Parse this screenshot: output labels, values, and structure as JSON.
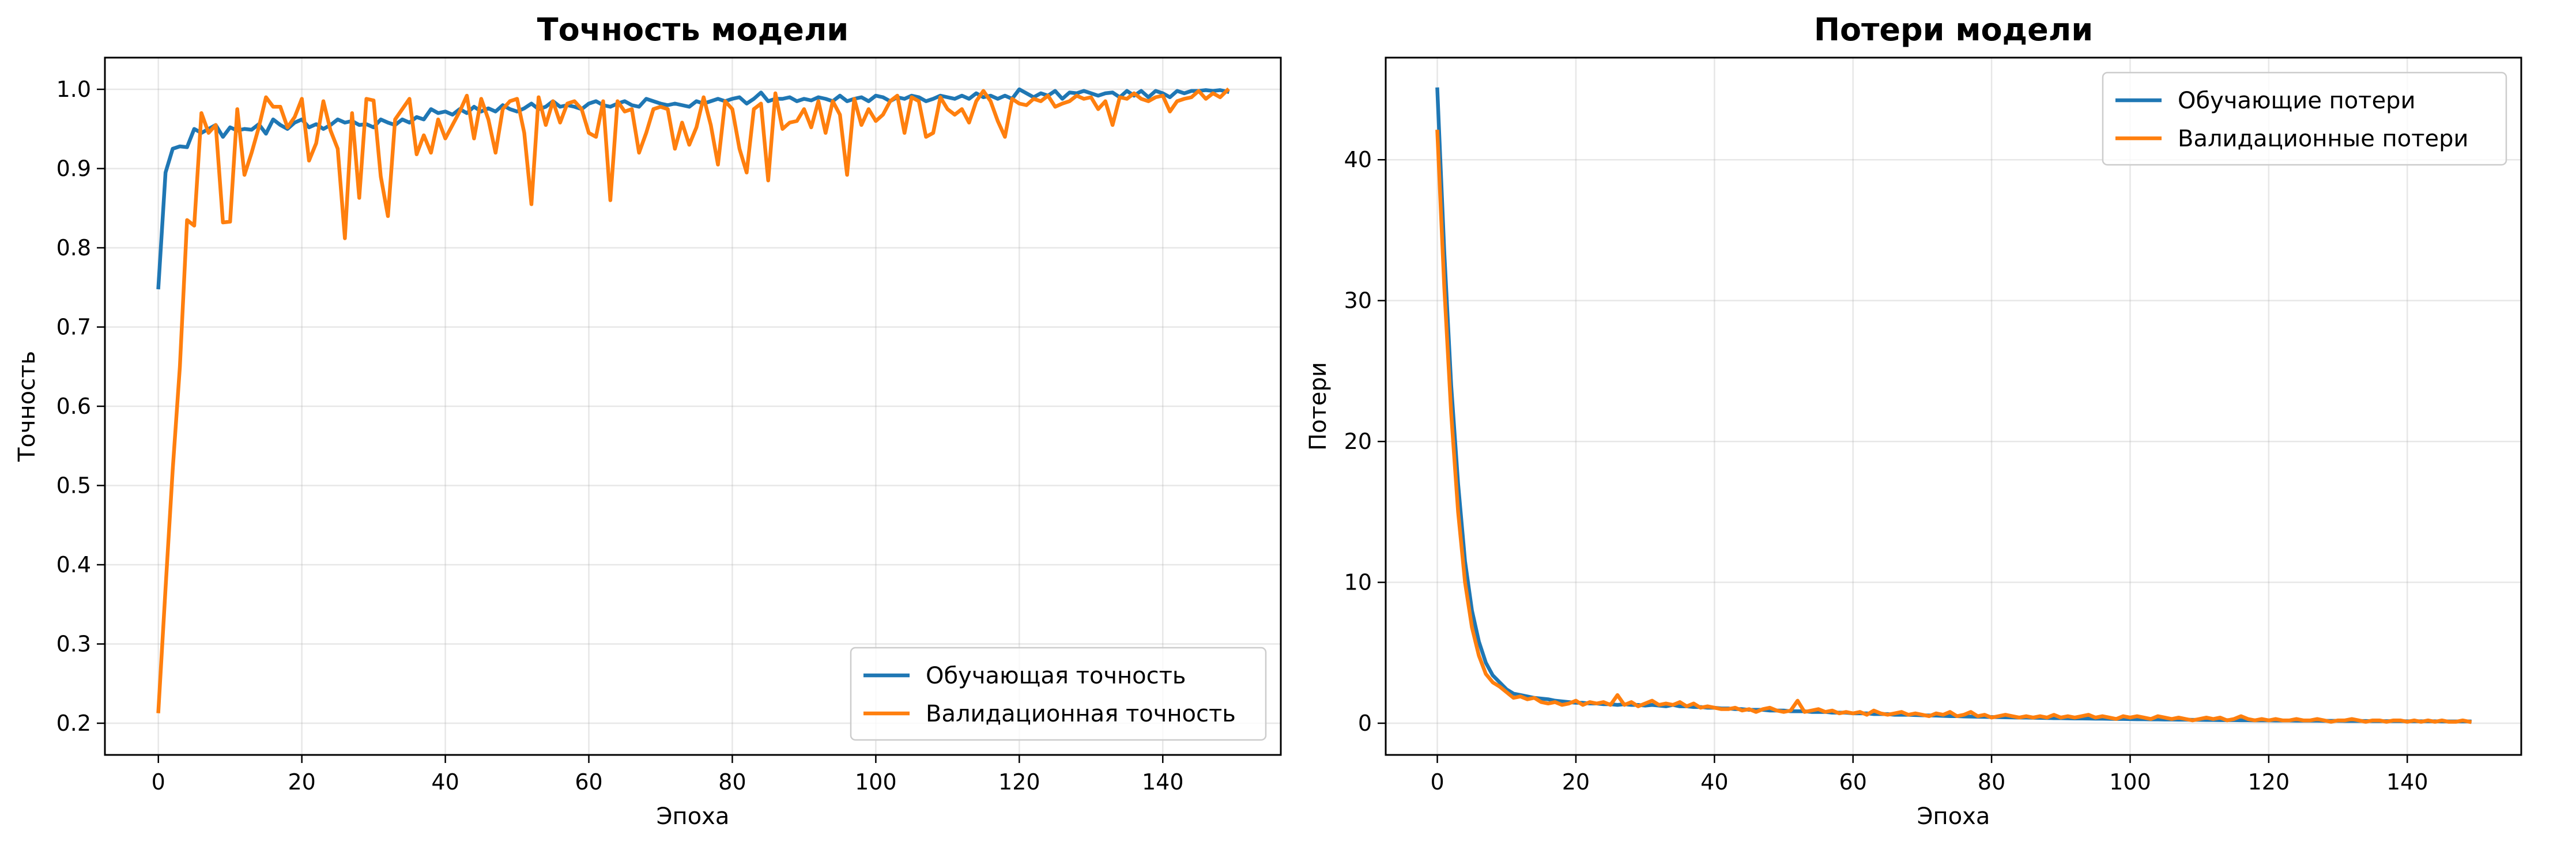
{
  "chart_data": [
    {
      "type": "line",
      "title": "Точность модели",
      "xlabel": "Эпоха",
      "ylabel": "Точность",
      "xlim": [
        -7.45,
        156.45
      ],
      "ylim": [
        0.16,
        1.04
      ],
      "xticks": [
        0,
        20,
        40,
        60,
        80,
        100,
        120,
        140
      ],
      "yticks": [
        0.2,
        0.3,
        0.4,
        0.5,
        0.6,
        0.7,
        0.8,
        0.9,
        1.0
      ],
      "ytick_labels": [
        "0.2",
        "0.3",
        "0.4",
        "0.5",
        "0.6",
        "0.7",
        "0.8",
        "0.9",
        "1.0"
      ],
      "grid": true,
      "legend_position": "lower-right",
      "x": [
        0,
        1,
        2,
        3,
        4,
        5,
        6,
        7,
        8,
        9,
        10,
        11,
        12,
        13,
        14,
        15,
        16,
        17,
        18,
        19,
        20,
        21,
        22,
        23,
        24,
        25,
        26,
        27,
        28,
        29,
        30,
        31,
        32,
        33,
        34,
        35,
        36,
        37,
        38,
        39,
        40,
        41,
        42,
        43,
        44,
        45,
        46,
        47,
        48,
        49,
        50,
        51,
        52,
        53,
        54,
        55,
        56,
        57,
        58,
        59,
        60,
        61,
        62,
        63,
        64,
        65,
        66,
        67,
        68,
        69,
        70,
        71,
        72,
        73,
        74,
        75,
        76,
        77,
        78,
        79,
        80,
        81,
        82,
        83,
        84,
        85,
        86,
        87,
        88,
        89,
        90,
        91,
        92,
        93,
        94,
        95,
        96,
        97,
        98,
        99,
        100,
        101,
        102,
        103,
        104,
        105,
        106,
        107,
        108,
        109,
        110,
        111,
        112,
        113,
        114,
        115,
        116,
        117,
        118,
        119,
        120,
        121,
        122,
        123,
        124,
        125,
        126,
        127,
        128,
        129,
        130,
        131,
        132,
        133,
        134,
        135,
        136,
        137,
        138,
        139,
        140,
        141,
        142,
        143,
        144,
        145,
        146,
        147,
        148,
        149
      ],
      "series": [
        {
          "name": "Обучающая точность",
          "color": "#1f77b4",
          "values": [
            0.75,
            0.895,
            0.925,
            0.928,
            0.927,
            0.95,
            0.945,
            0.95,
            0.955,
            0.94,
            0.952,
            0.948,
            0.95,
            0.949,
            0.956,
            0.944,
            0.962,
            0.955,
            0.95,
            0.958,
            0.962,
            0.952,
            0.956,
            0.95,
            0.955,
            0.962,
            0.958,
            0.96,
            0.955,
            0.956,
            0.952,
            0.962,
            0.958,
            0.955,
            0.962,
            0.958,
            0.965,
            0.962,
            0.975,
            0.97,
            0.972,
            0.968,
            0.975,
            0.97,
            0.978,
            0.972,
            0.976,
            0.972,
            0.98,
            0.975,
            0.972,
            0.976,
            0.982,
            0.975,
            0.978,
            0.985,
            0.978,
            0.98,
            0.978,
            0.975,
            0.982,
            0.985,
            0.98,
            0.978,
            0.982,
            0.985,
            0.98,
            0.978,
            0.988,
            0.985,
            0.982,
            0.98,
            0.982,
            0.98,
            0.978,
            0.985,
            0.982,
            0.985,
            0.988,
            0.985,
            0.988,
            0.99,
            0.982,
            0.988,
            0.996,
            0.985,
            0.988,
            0.988,
            0.99,
            0.985,
            0.988,
            0.986,
            0.99,
            0.988,
            0.985,
            0.992,
            0.985,
            0.988,
            0.99,
            0.985,
            0.992,
            0.99,
            0.985,
            0.99,
            0.988,
            0.992,
            0.99,
            0.985,
            0.988,
            0.992,
            0.99,
            0.988,
            0.992,
            0.988,
            0.995,
            0.99,
            0.992,
            0.988,
            0.992,
            0.988,
            1.0,
            0.995,
            0.99,
            0.995,
            0.992,
            0.998,
            0.988,
            0.996,
            0.995,
            0.998,
            0.995,
            0.992,
            0.995,
            0.996,
            0.99,
            0.998,
            0.992,
            0.998,
            0.99,
            0.998,
            0.995,
            0.99,
            0.998,
            0.995,
            0.998,
            0.998,
            0.999,
            0.998,
            0.999,
            0.997
          ]
        },
        {
          "name": "Валидационная точность",
          "color": "#ff7f0e",
          "values": [
            0.215,
            0.37,
            0.52,
            0.65,
            0.835,
            0.828,
            0.97,
            0.945,
            0.955,
            0.832,
            0.833,
            0.975,
            0.892,
            0.92,
            0.952,
            0.99,
            0.978,
            0.978,
            0.952,
            0.965,
            0.988,
            0.91,
            0.932,
            0.985,
            0.948,
            0.925,
            0.812,
            0.97,
            0.863,
            0.988,
            0.986,
            0.89,
            0.84,
            0.962,
            0.975,
            0.988,
            0.918,
            0.942,
            0.92,
            0.962,
            0.938,
            0.955,
            0.972,
            0.992,
            0.938,
            0.988,
            0.962,
            0.92,
            0.975,
            0.985,
            0.988,
            0.945,
            0.855,
            0.99,
            0.955,
            0.985,
            0.958,
            0.982,
            0.985,
            0.975,
            0.945,
            0.94,
            0.985,
            0.86,
            0.985,
            0.972,
            0.975,
            0.92,
            0.945,
            0.975,
            0.978,
            0.975,
            0.925,
            0.958,
            0.93,
            0.952,
            0.99,
            0.955,
            0.905,
            0.985,
            0.975,
            0.925,
            0.895,
            0.975,
            0.982,
            0.885,
            0.995,
            0.95,
            0.958,
            0.96,
            0.975,
            0.952,
            0.985,
            0.945,
            0.985,
            0.968,
            0.892,
            0.988,
            0.955,
            0.975,
            0.96,
            0.968,
            0.985,
            0.992,
            0.945,
            0.99,
            0.985,
            0.94,
            0.945,
            0.99,
            0.975,
            0.968,
            0.975,
            0.958,
            0.985,
            0.998,
            0.985,
            0.96,
            0.94,
            0.988,
            0.982,
            0.98,
            0.988,
            0.985,
            0.992,
            0.978,
            0.982,
            0.985,
            0.992,
            0.988,
            0.99,
            0.975,
            0.985,
            0.955,
            0.99,
            0.988,
            0.995,
            0.988,
            0.985,
            0.99,
            0.992,
            0.972,
            0.985,
            0.988,
            0.99,
            0.998,
            0.988,
            0.995,
            0.99,
            0.999
          ]
        }
      ]
    },
    {
      "type": "line",
      "title": "Потери модели",
      "xlabel": "Эпоха",
      "ylabel": "Потери",
      "xlim": [
        -7.45,
        156.45
      ],
      "ylim": [
        -2.25,
        47.25
      ],
      "xticks": [
        0,
        20,
        40,
        60,
        80,
        100,
        120,
        140
      ],
      "yticks": [
        0,
        10,
        20,
        30,
        40
      ],
      "ytick_labels": [
        "0",
        "10",
        "20",
        "30",
        "40"
      ],
      "grid": true,
      "legend_position": "upper-right",
      "x": [
        0,
        1,
        2,
        3,
        4,
        5,
        6,
        7,
        8,
        9,
        10,
        11,
        12,
        13,
        14,
        15,
        16,
        17,
        18,
        19,
        20,
        21,
        22,
        23,
        24,
        25,
        26,
        27,
        28,
        29,
        30,
        31,
        32,
        33,
        34,
        35,
        36,
        37,
        38,
        39,
        40,
        41,
        42,
        43,
        44,
        45,
        46,
        47,
        48,
        49,
        50,
        51,
        52,
        53,
        54,
        55,
        56,
        57,
        58,
        59,
        60,
        61,
        62,
        63,
        64,
        65,
        66,
        67,
        68,
        69,
        70,
        71,
        72,
        73,
        74,
        75,
        76,
        77,
        78,
        79,
        80,
        81,
        82,
        83,
        84,
        85,
        86,
        87,
        88,
        89,
        90,
        91,
        92,
        93,
        94,
        95,
        96,
        97,
        98,
        99,
        100,
        101,
        102,
        103,
        104,
        105,
        106,
        107,
        108,
        109,
        110,
        111,
        112,
        113,
        114,
        115,
        116,
        117,
        118,
        119,
        120,
        121,
        122,
        123,
        124,
        125,
        126,
        127,
        128,
        129,
        130,
        131,
        132,
        133,
        134,
        135,
        136,
        137,
        138,
        139,
        140,
        141,
        142,
        143,
        144,
        145,
        146,
        147,
        148,
        149
      ],
      "series": [
        {
          "name": "Обучающие потери",
          "color": "#1f77b4",
          "values": [
            45.0,
            33.5,
            24.0,
            17.0,
            11.5,
            8.0,
            5.8,
            4.3,
            3.4,
            2.9,
            2.4,
            2.1,
            2.0,
            1.9,
            1.8,
            1.75,
            1.7,
            1.6,
            1.55,
            1.5,
            1.45,
            1.45,
            1.4,
            1.4,
            1.35,
            1.35,
            1.3,
            1.35,
            1.3,
            1.3,
            1.25,
            1.3,
            1.25,
            1.2,
            1.3,
            1.2,
            1.2,
            1.15,
            1.15,
            1.1,
            1.1,
            1.05,
            1.05,
            1.0,
            1.0,
            0.95,
            0.95,
            0.95,
            0.9,
            0.9,
            0.9,
            0.85,
            0.85,
            0.85,
            0.8,
            0.8,
            0.8,
            0.75,
            0.75,
            0.75,
            0.7,
            0.7,
            0.7,
            0.65,
            0.65,
            0.65,
            0.6,
            0.6,
            0.6,
            0.58,
            0.56,
            0.55,
            0.54,
            0.52,
            0.5,
            0.5,
            0.48,
            0.47,
            0.46,
            0.45,
            0.44,
            0.43,
            0.42,
            0.41,
            0.4,
            0.4,
            0.39,
            0.38,
            0.37,
            0.36,
            0.36,
            0.35,
            0.34,
            0.34,
            0.33,
            0.32,
            0.32,
            0.31,
            0.3,
            0.3,
            0.29,
            0.28,
            0.28,
            0.27,
            0.27,
            0.26,
            0.26,
            0.25,
            0.25,
            0.24,
            0.24,
            0.23,
            0.23,
            0.22,
            0.22,
            0.22,
            0.21,
            0.21,
            0.2,
            0.2,
            0.2,
            0.19,
            0.19,
            0.19,
            0.18,
            0.18,
            0.18,
            0.18,
            0.17,
            0.17,
            0.17,
            0.16,
            0.16,
            0.16,
            0.16,
            0.15,
            0.15,
            0.15,
            0.15,
            0.15,
            0.14,
            0.14,
            0.14,
            0.14,
            0.14,
            0.13,
            0.13,
            0.13,
            0.13,
            0.13
          ]
        },
        {
          "name": "Валидационные потери",
          "color": "#ff7f0e",
          "values": [
            42.0,
            31.0,
            22.0,
            15.0,
            10.0,
            6.8,
            4.8,
            3.5,
            2.9,
            2.6,
            2.2,
            1.8,
            1.9,
            1.7,
            1.8,
            1.5,
            1.4,
            1.5,
            1.3,
            1.4,
            1.6,
            1.3,
            1.5,
            1.4,
            1.5,
            1.3,
            2.0,
            1.3,
            1.5,
            1.2,
            1.4,
            1.6,
            1.3,
            1.4,
            1.3,
            1.5,
            1.2,
            1.4,
            1.1,
            1.2,
            1.1,
            1.0,
            1.0,
            1.1,
            0.9,
            1.0,
            0.8,
            1.0,
            1.1,
            0.9,
            0.8,
            0.9,
            1.6,
            0.8,
            0.9,
            1.0,
            0.8,
            0.9,
            0.7,
            0.8,
            0.7,
            0.8,
            0.6,
            0.9,
            0.7,
            0.6,
            0.7,
            0.8,
            0.6,
            0.7,
            0.6,
            0.5,
            0.7,
            0.6,
            0.8,
            0.5,
            0.6,
            0.8,
            0.5,
            0.6,
            0.4,
            0.5,
            0.6,
            0.5,
            0.4,
            0.5,
            0.4,
            0.5,
            0.4,
            0.6,
            0.4,
            0.5,
            0.4,
            0.5,
            0.6,
            0.4,
            0.5,
            0.4,
            0.3,
            0.5,
            0.4,
            0.5,
            0.4,
            0.3,
            0.5,
            0.4,
            0.3,
            0.4,
            0.3,
            0.2,
            0.3,
            0.4,
            0.3,
            0.4,
            0.2,
            0.3,
            0.5,
            0.3,
            0.2,
            0.3,
            0.2,
            0.3,
            0.2,
            0.2,
            0.3,
            0.2,
            0.2,
            0.3,
            0.2,
            0.1,
            0.2,
            0.2,
            0.3,
            0.2,
            0.1,
            0.2,
            0.2,
            0.1,
            0.2,
            0.2,
            0.1,
            0.2,
            0.1,
            0.2,
            0.1,
            0.2,
            0.1,
            0.1,
            0.2,
            0.1
          ]
        }
      ]
    }
  ]
}
